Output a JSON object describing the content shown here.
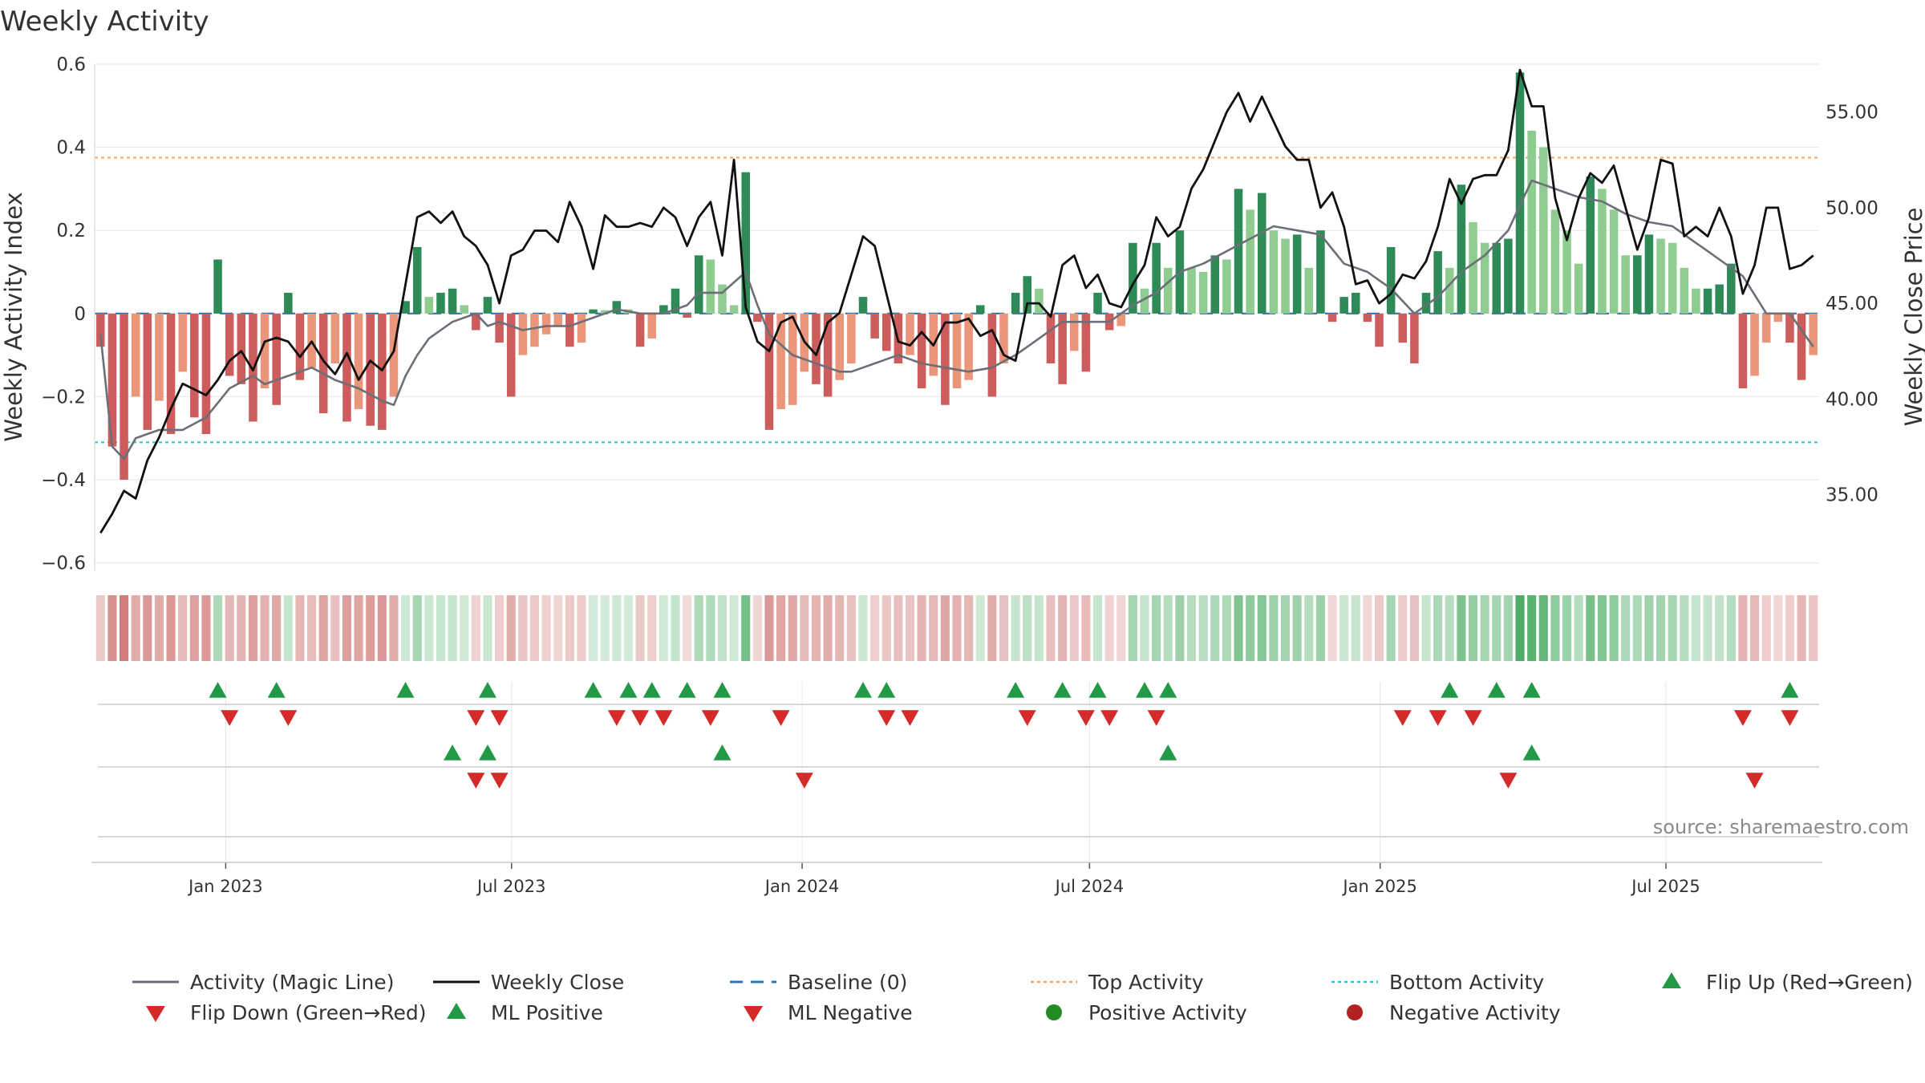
{
  "chart_data": {
    "type": "bar+line",
    "title": "Weekly Activity",
    "ylabel_left": "Weekly Activity Index",
    "ylabel_right": "Weekly Close Price",
    "ylim_left": [
      -0.62,
      0.6
    ],
    "ylim_right": [
      31.0,
      57.5
    ],
    "yticks_left": [
      0.6,
      0.4,
      0.2,
      0,
      -0.2,
      -0.4,
      -0.6
    ],
    "yticks_left_labels": [
      "0.6",
      "0.4",
      "0.2",
      "0",
      "−0.2",
      "−0.4",
      "−0.6"
    ],
    "yticks_right": [
      55,
      50,
      45,
      40,
      35
    ],
    "yticks_right_labels": [
      "55.00",
      "50.00",
      "45.00",
      "40.00",
      "35.00"
    ],
    "top_activity": 0.375,
    "bottom_activity": -0.31,
    "date_range": [
      "2022-10-10",
      "2025-10-06"
    ],
    "x_tick_dates": [
      "2023-01-01",
      "2023-07-01",
      "2024-01-01",
      "2024-07-01",
      "2025-01-01",
      "2025-07-01"
    ],
    "x_tick_labels": [
      "Jan 2023",
      "Jul 2023",
      "Jan 2024",
      "Jul 2024",
      "Jan 2025",
      "Jul 2025"
    ],
    "activity_keys": [
      [
        0,
        -0.08
      ],
      [
        1,
        -0.32
      ],
      [
        2,
        -0.4
      ],
      [
        3,
        -0.2
      ],
      [
        4,
        -0.28
      ],
      [
        5,
        -0.21
      ],
      [
        6,
        -0.29
      ],
      [
        7,
        -0.14
      ],
      [
        8,
        -0.25
      ],
      [
        9,
        -0.29
      ],
      [
        10,
        0.13
      ],
      [
        11,
        -0.15
      ],
      [
        12,
        -0.17
      ],
      [
        13,
        -0.26
      ],
      [
        14,
        -0.18
      ],
      [
        15,
        -0.22
      ],
      [
        16,
        0.05
      ],
      [
        17,
        -0.16
      ],
      [
        18,
        -0.13
      ],
      [
        19,
        -0.24
      ],
      [
        20,
        -0.12
      ],
      [
        21,
        -0.26
      ],
      [
        22,
        -0.23
      ],
      [
        23,
        -0.27
      ],
      [
        24,
        -0.28
      ],
      [
        25,
        -0.2
      ],
      [
        26,
        0.03
      ],
      [
        27,
        0.16
      ],
      [
        28,
        0.04
      ],
      [
        29,
        0.05
      ],
      [
        30,
        0.06
      ],
      [
        31,
        0.02
      ],
      [
        32,
        -0.04
      ],
      [
        33,
        0.04
      ],
      [
        34,
        -0.07
      ],
      [
        35,
        -0.2
      ],
      [
        36,
        -0.1
      ],
      [
        37,
        -0.08
      ],
      [
        38,
        -0.05
      ],
      [
        39,
        -0.03
      ],
      [
        40,
        -0.08
      ],
      [
        41,
        -0.07
      ],
      [
        42,
        0.01
      ],
      [
        43,
        0.008
      ],
      [
        44,
        0.03
      ],
      [
        45,
        0.01
      ],
      [
        46,
        -0.08
      ],
      [
        47,
        -0.06
      ],
      [
        48,
        0.02
      ],
      [
        49,
        0.06
      ],
      [
        50,
        -0.01
      ],
      [
        51,
        0.14
      ],
      [
        52,
        0.13
      ],
      [
        53,
        0.07
      ],
      [
        54,
        0.02
      ],
      [
        55,
        0.34
      ],
      [
        56,
        -0.02
      ],
      [
        57,
        -0.28
      ],
      [
        58,
        -0.23
      ],
      [
        59,
        -0.22
      ],
      [
        60,
        -0.14
      ],
      [
        61,
        -0.17
      ],
      [
        62,
        -0.2
      ],
      [
        63,
        -0.16
      ],
      [
        64,
        -0.12
      ],
      [
        65,
        0.04
      ],
      [
        66,
        -0.06
      ],
      [
        67,
        -0.09
      ],
      [
        68,
        -0.12
      ],
      [
        69,
        -0.1
      ],
      [
        70,
        -0.18
      ],
      [
        71,
        -0.15
      ],
      [
        72,
        -0.22
      ],
      [
        73,
        -0.18
      ],
      [
        74,
        -0.16
      ],
      [
        75,
        0.02
      ],
      [
        76,
        -0.2
      ],
      [
        77,
        -0.12
      ],
      [
        78,
        0.05
      ],
      [
        79,
        0.09
      ],
      [
        80,
        0.06
      ],
      [
        81,
        -0.12
      ],
      [
        82,
        -0.17
      ],
      [
        83,
        -0.09
      ],
      [
        84,
        -0.14
      ],
      [
        85,
        0.05
      ],
      [
        86,
        -0.04
      ],
      [
        87,
        -0.03
      ],
      [
        88,
        0.17
      ],
      [
        89,
        0.06
      ],
      [
        90,
        0.17
      ],
      [
        91,
        0.11
      ],
      [
        92,
        0.2
      ],
      [
        93,
        0.11
      ],
      [
        94,
        0.1
      ],
      [
        95,
        0.14
      ],
      [
        96,
        0.13
      ],
      [
        97,
        0.3
      ],
      [
        98,
        0.25
      ],
      [
        99,
        0.29
      ],
      [
        100,
        0.2
      ],
      [
        101,
        0.18
      ],
      [
        102,
        0.19
      ],
      [
        103,
        0.11
      ],
      [
        104,
        0.2
      ],
      [
        105,
        -0.02
      ],
      [
        106,
        0.04
      ],
      [
        107,
        0.05
      ],
      [
        108,
        -0.02
      ],
      [
        109,
        -0.08
      ],
      [
        110,
        0.16
      ],
      [
        111,
        -0.07
      ],
      [
        112,
        -0.12
      ],
      [
        113,
        0.05
      ],
      [
        114,
        0.15
      ],
      [
        115,
        0.11
      ],
      [
        116,
        0.31
      ],
      [
        117,
        0.22
      ],
      [
        118,
        0.17
      ],
      [
        119,
        0.17
      ],
      [
        120,
        0.18
      ],
      [
        121,
        0.58
      ],
      [
        122,
        0.44
      ],
      [
        123,
        0.4
      ],
      [
        124,
        0.25
      ],
      [
        125,
        0.2
      ],
      [
        126,
        0.12
      ],
      [
        127,
        0.33
      ],
      [
        128,
        0.3
      ],
      [
        129,
        0.25
      ],
      [
        130,
        0.14
      ],
      [
        131,
        0.14
      ],
      [
        132,
        0.19
      ],
      [
        133,
        0.18
      ],
      [
        134,
        0.17
      ],
      [
        135,
        0.11
      ],
      [
        136,
        0.06
      ],
      [
        137,
        0.06
      ],
      [
        138,
        0.07
      ],
      [
        139,
        0.12
      ],
      [
        140,
        -0.18
      ],
      [
        141,
        -0.15
      ],
      [
        142,
        -0.07
      ],
      [
        143,
        -0.02
      ],
      [
        144,
        -0.07
      ],
      [
        145,
        -0.16
      ],
      [
        146,
        -0.1
      ]
    ],
    "magic_line_keys": [
      [
        0,
        -0.05
      ],
      [
        1,
        -0.32
      ],
      [
        2,
        -0.35
      ],
      [
        3,
        -0.3
      ],
      [
        5,
        -0.28
      ],
      [
        7,
        -0.28
      ],
      [
        9,
        -0.25
      ],
      [
        11,
        -0.18
      ],
      [
        13,
        -0.15
      ],
      [
        14,
        -0.17
      ],
      [
        16,
        -0.15
      ],
      [
        18,
        -0.13
      ],
      [
        20,
        -0.16
      ],
      [
        22,
        -0.18
      ],
      [
        24,
        -0.21
      ],
      [
        25,
        -0.22
      ],
      [
        26,
        -0.15
      ],
      [
        27,
        -0.1
      ],
      [
        28,
        -0.06
      ],
      [
        30,
        -0.02
      ],
      [
        32,
        0.0
      ],
      [
        33,
        -0.03
      ],
      [
        34,
        -0.02
      ],
      [
        36,
        -0.04
      ],
      [
        38,
        -0.03
      ],
      [
        40,
        -0.03
      ],
      [
        42,
        -0.01
      ],
      [
        44,
        0.01
      ],
      [
        46,
        0.0
      ],
      [
        48,
        0.0
      ],
      [
        50,
        0.02
      ],
      [
        51,
        0.05
      ],
      [
        53,
        0.05
      ],
      [
        55,
        0.1
      ],
      [
        56,
        0.02
      ],
      [
        57,
        -0.05
      ],
      [
        59,
        -0.1
      ],
      [
        61,
        -0.12
      ],
      [
        63,
        -0.14
      ],
      [
        64,
        -0.14
      ],
      [
        66,
        -0.12
      ],
      [
        68,
        -0.1
      ],
      [
        70,
        -0.12
      ],
      [
        72,
        -0.13
      ],
      [
        74,
        -0.14
      ],
      [
        76,
        -0.13
      ],
      [
        78,
        -0.1
      ],
      [
        80,
        -0.06
      ],
      [
        82,
        -0.02
      ],
      [
        84,
        -0.02
      ],
      [
        86,
        -0.02
      ],
      [
        88,
        0.02
      ],
      [
        90,
        0.05
      ],
      [
        92,
        0.1
      ],
      [
        94,
        0.12
      ],
      [
        96,
        0.15
      ],
      [
        98,
        0.18
      ],
      [
        100,
        0.21
      ],
      [
        102,
        0.2
      ],
      [
        104,
        0.19
      ],
      [
        106,
        0.12
      ],
      [
        108,
        0.1
      ],
      [
        110,
        0.06
      ],
      [
        112,
        0.0
      ],
      [
        114,
        0.04
      ],
      [
        116,
        0.1
      ],
      [
        118,
        0.14
      ],
      [
        120,
        0.2
      ],
      [
        122,
        0.32
      ],
      [
        124,
        0.3
      ],
      [
        126,
        0.28
      ],
      [
        128,
        0.27
      ],
      [
        130,
        0.24
      ],
      [
        132,
        0.22
      ],
      [
        134,
        0.21
      ],
      [
        136,
        0.17
      ],
      [
        138,
        0.13
      ],
      [
        140,
        0.09
      ],
      [
        142,
        0.0
      ],
      [
        144,
        0.0
      ],
      [
        146,
        -0.08
      ]
    ],
    "price_keys": [
      [
        0,
        33.0
      ],
      [
        1,
        34.0
      ],
      [
        2,
        35.2
      ],
      [
        3,
        34.8
      ],
      [
        4,
        36.8
      ],
      [
        5,
        38.0
      ],
      [
        6,
        39.5
      ],
      [
        7,
        40.8
      ],
      [
        8,
        40.5
      ],
      [
        9,
        40.2
      ],
      [
        10,
        41.0
      ],
      [
        11,
        42.0
      ],
      [
        12,
        42.5
      ],
      [
        13,
        41.5
      ],
      [
        14,
        43.0
      ],
      [
        15,
        43.2
      ],
      [
        16,
        43.0
      ],
      [
        17,
        42.2
      ],
      [
        18,
        43.0
      ],
      [
        19,
        42.0
      ],
      [
        20,
        41.3
      ],
      [
        21,
        42.4
      ],
      [
        22,
        41.0
      ],
      [
        23,
        42.0
      ],
      [
        24,
        41.5
      ],
      [
        25,
        42.5
      ],
      [
        26,
        46.0
      ],
      [
        27,
        49.5
      ],
      [
        28,
        49.8
      ],
      [
        29,
        49.2
      ],
      [
        30,
        49.8
      ],
      [
        31,
        48.5
      ],
      [
        32,
        48.0
      ],
      [
        33,
        47.0
      ],
      [
        34,
        45.0
      ],
      [
        35,
        47.5
      ],
      [
        36,
        47.8
      ],
      [
        37,
        48.8
      ],
      [
        38,
        48.8
      ],
      [
        39,
        48.2
      ],
      [
        40,
        50.3
      ],
      [
        41,
        49.0
      ],
      [
        42,
        46.8
      ],
      [
        43,
        49.6
      ],
      [
        44,
        49.0
      ],
      [
        45,
        49.0
      ],
      [
        46,
        49.2
      ],
      [
        47,
        49.0
      ],
      [
        48,
        50.0
      ],
      [
        49,
        49.5
      ],
      [
        50,
        48.0
      ],
      [
        51,
        49.5
      ],
      [
        52,
        50.3
      ],
      [
        53,
        47.5
      ],
      [
        54,
        52.5
      ],
      [
        55,
        44.8
      ],
      [
        56,
        43.0
      ],
      [
        57,
        42.5
      ],
      [
        58,
        44.0
      ],
      [
        59,
        44.3
      ],
      [
        60,
        43.0
      ],
      [
        61,
        42.3
      ],
      [
        62,
        44.0
      ],
      [
        63,
        44.5
      ],
      [
        64,
        46.5
      ],
      [
        65,
        48.5
      ],
      [
        66,
        48.0
      ],
      [
        67,
        45.5
      ],
      [
        68,
        43.0
      ],
      [
        69,
        42.8
      ],
      [
        70,
        43.5
      ],
      [
        71,
        42.8
      ],
      [
        72,
        44.0
      ],
      [
        73,
        44.0
      ],
      [
        74,
        44.2
      ],
      [
        75,
        43.3
      ],
      [
        76,
        43.6
      ],
      [
        77,
        42.3
      ],
      [
        78,
        42.0
      ],
      [
        79,
        45.0
      ],
      [
        80,
        45.0
      ],
      [
        81,
        44.3
      ],
      [
        82,
        47.0
      ],
      [
        83,
        47.5
      ],
      [
        84,
        45.8
      ],
      [
        85,
        46.5
      ],
      [
        86,
        45.0
      ],
      [
        87,
        44.8
      ],
      [
        88,
        46.0
      ],
      [
        89,
        47.0
      ],
      [
        90,
        49.5
      ],
      [
        91,
        48.5
      ],
      [
        92,
        49.0
      ],
      [
        93,
        51.0
      ],
      [
        94,
        52.0
      ],
      [
        95,
        53.5
      ],
      [
        96,
        55.0
      ],
      [
        97,
        56.0
      ],
      [
        98,
        54.5
      ],
      [
        99,
        55.8
      ],
      [
        100,
        54.5
      ],
      [
        101,
        53.2
      ],
      [
        102,
        52.5
      ],
      [
        103,
        52.5
      ],
      [
        104,
        50.0
      ],
      [
        105,
        50.8
      ],
      [
        106,
        49.0
      ],
      [
        107,
        46.0
      ],
      [
        108,
        46.2
      ],
      [
        109,
        45.0
      ],
      [
        110,
        45.5
      ],
      [
        111,
        46.5
      ],
      [
        112,
        46.3
      ],
      [
        113,
        47.2
      ],
      [
        114,
        49.0
      ],
      [
        115,
        51.5
      ],
      [
        116,
        50.2
      ],
      [
        117,
        51.5
      ],
      [
        118,
        51.7
      ],
      [
        119,
        51.7
      ],
      [
        120,
        53.0
      ],
      [
        121,
        57.2
      ],
      [
        122,
        55.3
      ],
      [
        123,
        55.3
      ],
      [
        124,
        50.5
      ],
      [
        125,
        48.3
      ],
      [
        126,
        50.5
      ],
      [
        127,
        51.8
      ],
      [
        128,
        51.3
      ],
      [
        129,
        52.2
      ],
      [
        130,
        50.0
      ],
      [
        131,
        47.8
      ],
      [
        132,
        49.5
      ],
      [
        133,
        52.5
      ],
      [
        134,
        52.3
      ],
      [
        135,
        48.5
      ],
      [
        136,
        49.0
      ],
      [
        137,
        48.5
      ],
      [
        138,
        50.0
      ],
      [
        139,
        48.5
      ],
      [
        140,
        45.5
      ],
      [
        141,
        47.0
      ],
      [
        142,
        50.0
      ],
      [
        143,
        50.0
      ],
      [
        144,
        46.8
      ],
      [
        145,
        47.0
      ],
      [
        146,
        47.5
      ]
    ],
    "flip_up": [
      10,
      15,
      26,
      33,
      42,
      45,
      47,
      50,
      53,
      65,
      67,
      78,
      82,
      85,
      89,
      91,
      115,
      119,
      122,
      144
    ],
    "flip_down": [
      11,
      16,
      32,
      34,
      44,
      46,
      48,
      52,
      58,
      67,
      69,
      79,
      84,
      86,
      90,
      111,
      114,
      117,
      140,
      144
    ],
    "ml_positive": [
      30,
      33,
      53,
      91,
      122
    ],
    "ml_negative": [
      32,
      34,
      60,
      120,
      141
    ],
    "colors": {
      "pos_dark": "#2e8b57",
      "pos_light": "#8fcc8f",
      "neg_dark": "#cd5c5c",
      "neg_light": "#e9967a",
      "magic_line": "#6b6f78",
      "price": "#111111",
      "baseline": "#2a73b4",
      "top_line": "#f0a060",
      "bottom_line": "#22c7d1",
      "marker_up": "#229944",
      "marker_down": "#d42a2a",
      "dot_pos": "#228b22",
      "dot_neg": "#b22222",
      "grid": "#e6e6e6"
    },
    "legend": [
      {
        "label": "Activity (Magic Line)",
        "symbol": "line-gray"
      },
      {
        "label": "Weekly Close",
        "symbol": "line-black"
      },
      {
        "label": "Baseline (0)",
        "symbol": "dash-blue"
      },
      {
        "label": "Top Activity",
        "symbol": "dot-orange"
      },
      {
        "label": "Bottom Activity",
        "symbol": "dot-cyan"
      },
      {
        "label": "Flip Up (Red→Green)",
        "symbol": "triangle-up-green"
      },
      {
        "label": "Flip Down (Green→Red)",
        "symbol": "triangle-down-red"
      },
      {
        "label": "ML Positive",
        "symbol": "triangle-up-green"
      },
      {
        "label": "ML Negative",
        "symbol": "triangle-down-red"
      },
      {
        "label": "Positive Activity",
        "symbol": "circle-green"
      },
      {
        "label": "Negative Activity",
        "symbol": "circle-red"
      }
    ]
  },
  "source": "source: sharemaestro.com"
}
